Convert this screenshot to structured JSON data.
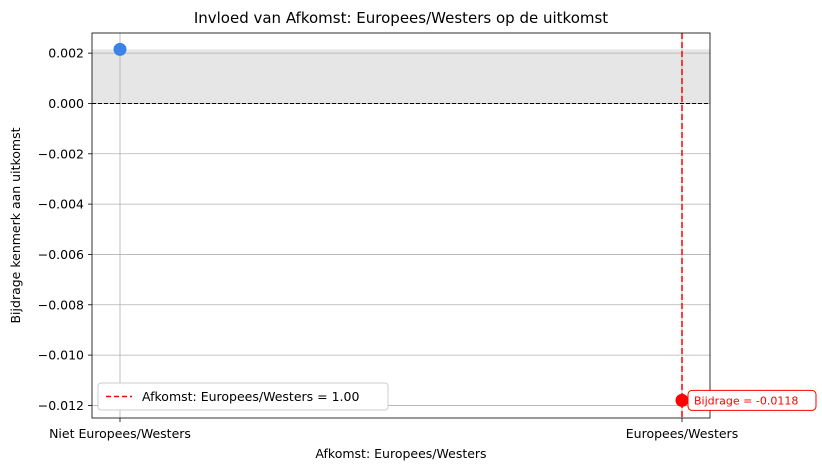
{
  "chart_data": {
    "type": "scatter",
    "title": "Invloed van Afkomst: Europees/Westers op de uitkomst",
    "xlabel": "Afkomst: Europees/Westers",
    "ylabel": "Bijdrage kenmerk aan uitkomst",
    "categories": [
      "Niet Europees/Westers",
      "Europees/Westers"
    ],
    "x": [
      0,
      1
    ],
    "values": [
      0.00215,
      -0.0118
    ],
    "point_colors": [
      "#3b83e6",
      "#ff0000"
    ],
    "ylim": [
      -0.0125,
      0.0028
    ],
    "yticks": [
      0.002,
      0.0,
      -0.002,
      -0.004,
      -0.006,
      -0.008,
      -0.01,
      -0.012
    ],
    "ytick_labels": [
      "0.002",
      "0.000",
      "−0.002",
      "−0.004",
      "−0.006",
      "−0.008",
      "−0.010",
      "−0.012"
    ],
    "grid": true,
    "zero_line": 0,
    "shaded_band": [
      0,
      0.00215
    ],
    "current_value_x": 1,
    "legend": {
      "placement": "lower-left",
      "label": "Afkomst: Europees/Westers = 1.00",
      "color": "#ff0000"
    },
    "annotation": {
      "text": "Bijdrage = -0.0118",
      "color": "#ff0000",
      "x": 1,
      "y": -0.0118
    }
  }
}
